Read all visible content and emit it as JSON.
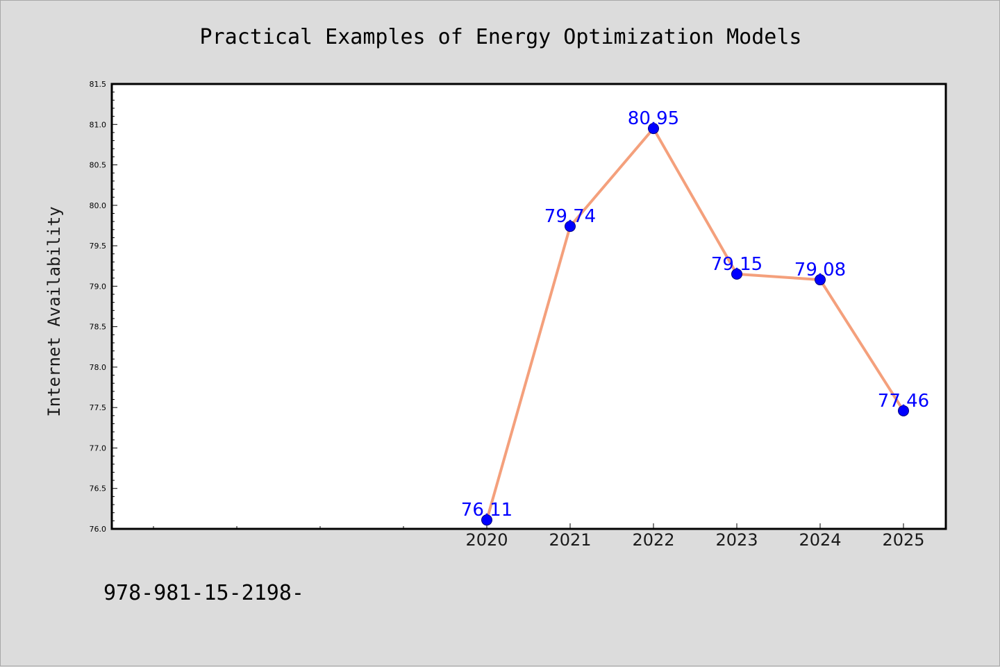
{
  "chart_data": {
    "type": "line",
    "title": "Practical Examples of Energy Optimization Models",
    "xlabel": "",
    "ylabel": "Internet Availability",
    "x": [
      "2020",
      "2021",
      "2022",
      "2023",
      "2024",
      "2025"
    ],
    "series": [
      {
        "values": [
          76.11,
          79.74,
          80.95,
          79.15,
          79.08,
          77.46
        ],
        "labels": [
          "76.11",
          "79.74",
          "80.95",
          "79.15",
          "79.08",
          "77.46"
        ]
      }
    ],
    "ylim": [
      76.0,
      81.5
    ],
    "y_ticks": [
      "76.0",
      "76.5",
      "77.0",
      "77.5",
      "78.0",
      "78.5",
      "79.0",
      "79.5",
      "80.0",
      "80.5",
      "81.0",
      "81.5"
    ],
    "grid": false,
    "legend": "none",
    "colors": {
      "line": "#f4a07c",
      "marker": "#0000ff",
      "data_label": "#0000ff",
      "plot_background": "#ffffff",
      "figure_background": "#dcdcdc"
    }
  },
  "footer": {
    "text": "978-981-15-2198-"
  }
}
